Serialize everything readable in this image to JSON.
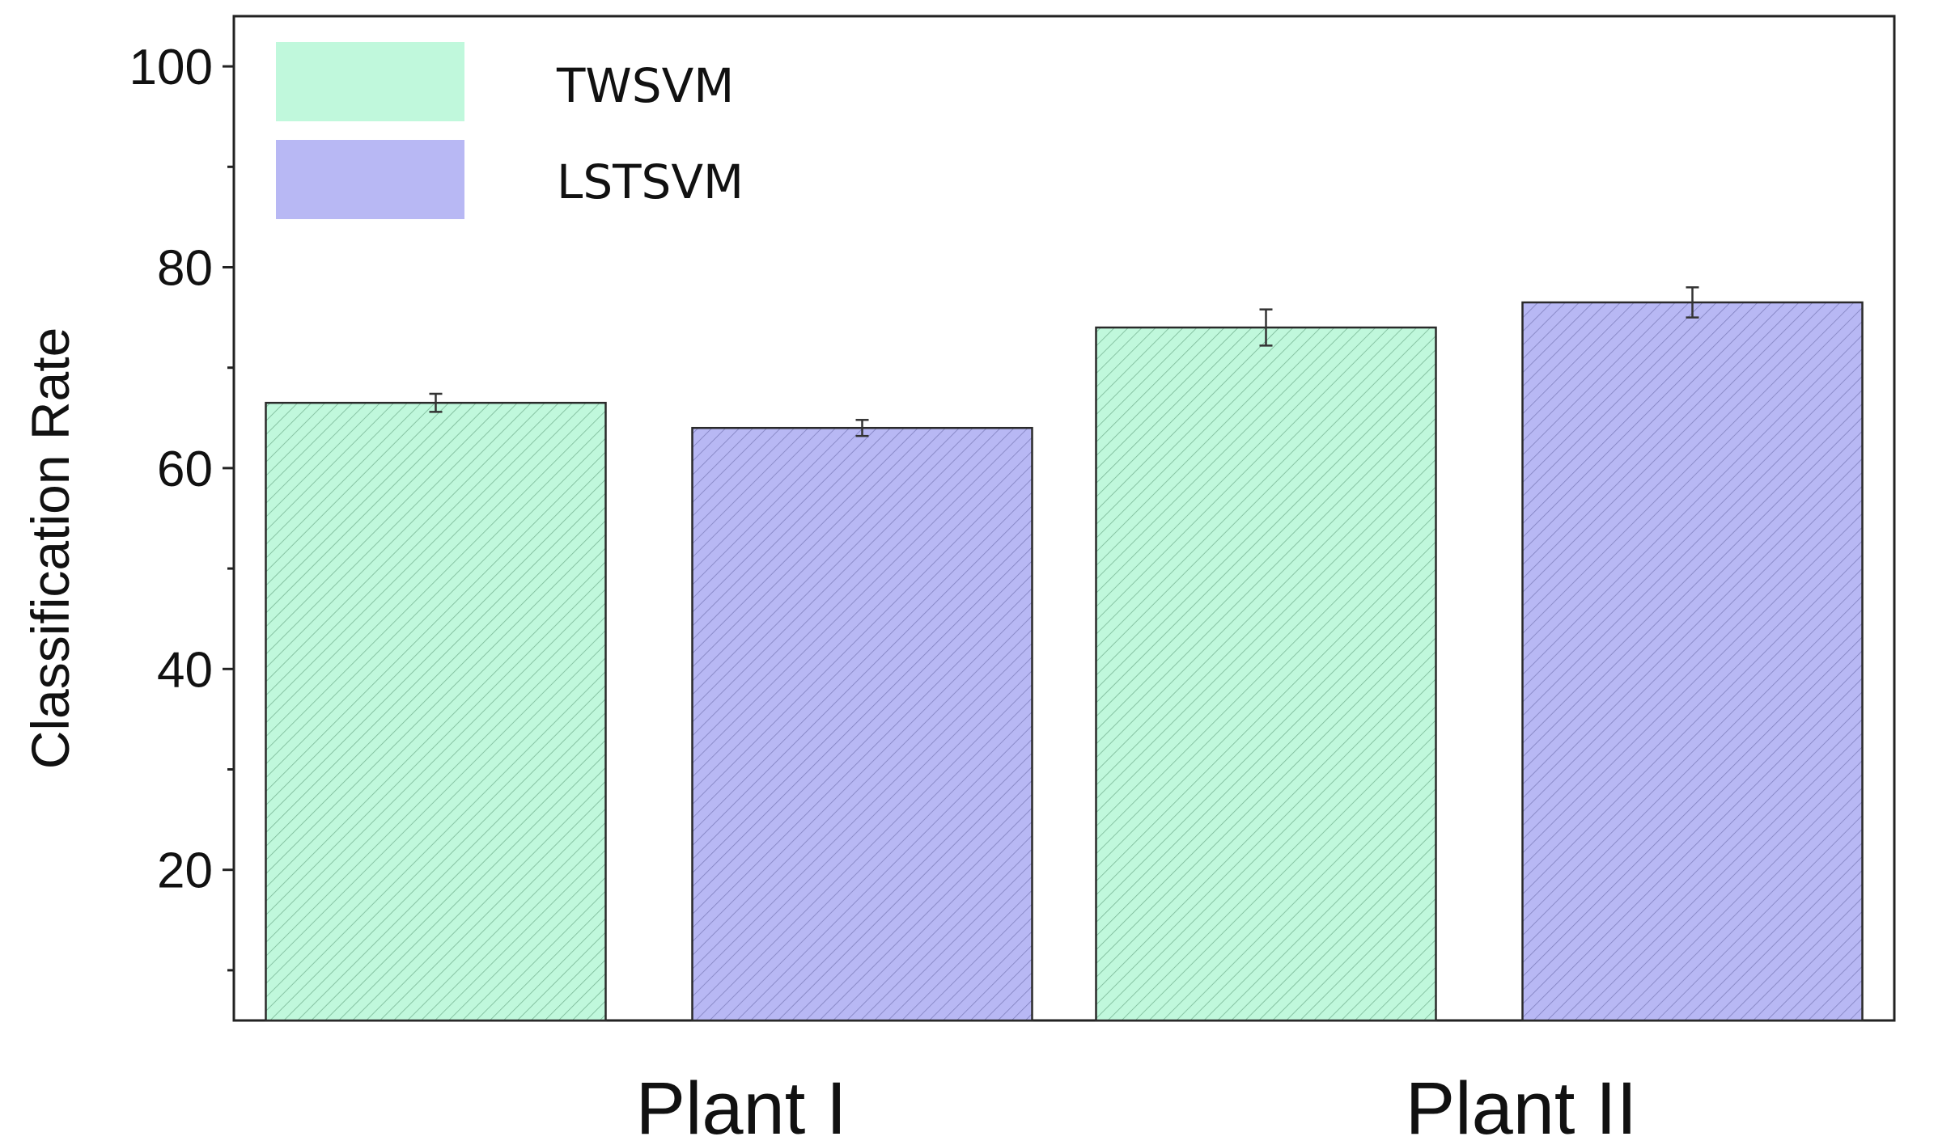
{
  "chart_data": {
    "type": "bar",
    "title": "",
    "xlabel": "",
    "ylabel": "Classification Rate",
    "ylim": [
      5,
      105
    ],
    "yticks": [
      20,
      40,
      60,
      80,
      100
    ],
    "yticks_minor": [
      10,
      30,
      50,
      70,
      90
    ],
    "categories": [
      "Plant I",
      "Plant II"
    ],
    "series": [
      {
        "name": "TWSVM",
        "values": [
          66.5,
          74.0
        ],
        "errors": [
          0.9,
          1.8
        ],
        "color": "#c0f8dc",
        "hatch_color": "#4a8a66"
      },
      {
        "name": "LSTSVM",
        "values": [
          64.0,
          76.5
        ],
        "errors": [
          0.8,
          1.5
        ],
        "color": "#b8b8f4",
        "hatch_color": "#5a5a9a"
      }
    ],
    "legend_position": "top-left",
    "grid": false
  }
}
